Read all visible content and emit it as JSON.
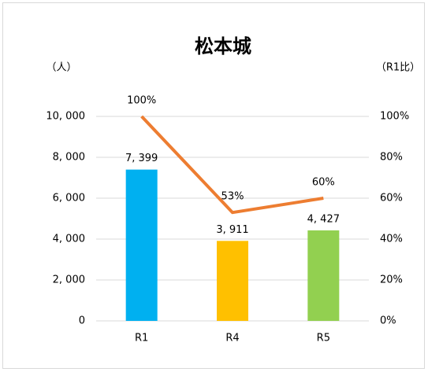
{
  "chart_data": {
    "type": "bar",
    "title": "松本城",
    "y_label": "（人）",
    "y2_label": "（R1比）",
    "categories": [
      "R1",
      "R4",
      "R5"
    ],
    "series": [
      {
        "type": "bar",
        "colors": [
          "#00b0f0",
          "#ffc000",
          "#92d050"
        ],
        "values": [
          7399,
          3911,
          4427
        ],
        "value_labels": [
          "7, 399",
          "3, 911",
          "4, 427"
        ]
      },
      {
        "type": "line",
        "axis": "y2",
        "color": "#ed7d31",
        "values": [
          100,
          53,
          60
        ],
        "value_labels": [
          "100%",
          "53%",
          "60%"
        ]
      }
    ],
    "ylim": [
      0,
      10000
    ],
    "yticks": [
      0,
      {
        "value": 2000,
        "label": "2, 000"
      },
      {
        "value": 4000,
        "label": "4, 000"
      },
      {
        "value": 6000,
        "label": "6, 000"
      },
      {
        "value": 8000,
        "label": "8, 000"
      },
      {
        "value": 10000,
        "label": "10, 000"
      }
    ],
    "y2lim": [
      0,
      100
    ],
    "y2ticks": [
      {
        "value": 0,
        "label": "0%"
      },
      {
        "value": 20,
        "label": "20%"
      },
      {
        "value": 40,
        "label": "40%"
      },
      {
        "value": 60,
        "label": "60%"
      },
      {
        "value": 80,
        "label": "80%"
      },
      {
        "value": 100,
        "label": "100%"
      }
    ],
    "grid": true
  }
}
